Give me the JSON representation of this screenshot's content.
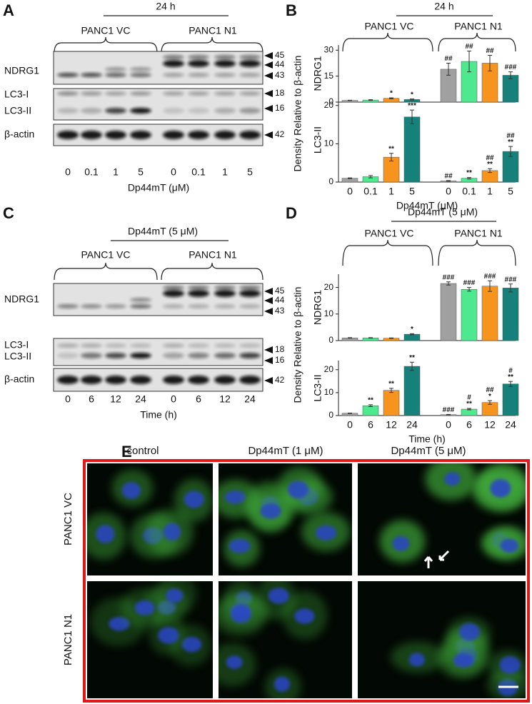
{
  "figure": {
    "panel_labels": [
      "A",
      "B",
      "C",
      "D",
      "E"
    ],
    "blot_a": {
      "title": "24 h",
      "groups": [
        "PANC1 VC",
        "PANC1 N1"
      ],
      "rows": [
        "NDRG1",
        "LC3-I",
        "LC3-II",
        "β-actin"
      ],
      "markers": [
        "45",
        "44",
        "43",
        "18",
        "16",
        "42"
      ],
      "lanes": [
        "0",
        "0.1",
        "1",
        "5",
        "0",
        "0.1",
        "1",
        "5"
      ],
      "xlabel": "Dp44mT (μM)"
    },
    "blot_c": {
      "title": "Dp44mT (5 μM)",
      "groups": [
        "PANC1 VC",
        "PANC1 N1"
      ],
      "rows": [
        "NDRG1",
        "LC3-I",
        "LC3-II",
        "β-actin"
      ],
      "markers": [
        "45",
        "44",
        "43",
        "18",
        "16",
        "42"
      ],
      "lanes": [
        "0",
        "6",
        "12",
        "24",
        "0",
        "6",
        "12",
        "24"
      ],
      "xlabel": "Time (h)"
    },
    "chart_b": {
      "title": "24 h",
      "groups": [
        "PANC1 VC",
        "PANC1 N1"
      ],
      "ylabel": "Density Relative to β-actin",
      "xlabel": "Dp44mT (μM)"
    },
    "chart_d": {
      "title": "Dp44mT (5 μM)",
      "groups": [
        "PANC1 VC",
        "PANC1 N1"
      ],
      "ylabel": "Density Relative to β-actin",
      "xlabel": "Time (h)"
    },
    "microscopy": {
      "columns": [
        "control",
        "Dp44mT (1 μM)",
        "Dp44mT (5 μM)"
      ],
      "rows": [
        "PANC1 VC",
        "PANC1 N1"
      ]
    }
  },
  "chart_data": [
    {
      "type": "bar",
      "ylabel": "NDRG1",
      "ylim": [
        0,
        33
      ],
      "yticks": [
        0,
        15,
        30
      ],
      "values": [
        1,
        1.2,
        2.2,
        1.5,
        19,
        23.5,
        22.5,
        15.5
      ],
      "errors": [
        0.1,
        0.2,
        0.3,
        0.3,
        3.5,
        6,
        4.5,
        2
      ],
      "colors": [
        "#a0a0a0",
        "#4ee88e",
        "#f7941d",
        "#16807a"
      ],
      "annotations": [
        null,
        null,
        "*",
        "*",
        "##",
        "##",
        "##",
        "###"
      ]
    },
    {
      "type": "bar",
      "ylabel": "LC3-II",
      "ylim": [
        0,
        22
      ],
      "yticks": [
        0,
        10,
        20
      ],
      "categories": [
        "0",
        "0.1",
        "1",
        "5",
        "0",
        "0.1",
        "1",
        "5"
      ],
      "values": [
        1,
        1.4,
        6.5,
        17,
        0.3,
        1,
        3,
        8
      ],
      "errors": [
        0.1,
        0.3,
        1,
        1.8,
        0.1,
        0.2,
        0.5,
        1.3
      ],
      "colors": [
        "#a0a0a0",
        "#4ee88e",
        "#f7941d",
        "#16807a"
      ],
      "annotations": [
        null,
        null,
        "**",
        "***",
        "##",
        "**",
        [
          "##",
          "**"
        ],
        [
          "##",
          "**"
        ]
      ]
    },
    {
      "type": "bar",
      "ylabel": "NDRG1",
      "ylim": [
        0,
        25
      ],
      "yticks": [
        0,
        10,
        20
      ],
      "values": [
        1,
        1,
        0.9,
        2.4,
        21.5,
        19.3,
        20.5,
        19.8
      ],
      "errors": [
        0.1,
        0.1,
        0.1,
        0.2,
        0.6,
        0.7,
        2,
        1.5
      ],
      "colors": [
        "#a0a0a0",
        "#4ee88e",
        "#f7941d",
        "#16807a"
      ],
      "annotations": [
        null,
        null,
        null,
        "*",
        "###",
        "###",
        "###",
        "###"
      ]
    },
    {
      "type": "bar",
      "ylabel": "LC3-II",
      "ylim": [
        0,
        24
      ],
      "yticks": [
        0,
        10,
        20
      ],
      "categories": [
        "0",
        "6",
        "12",
        "24",
        "0",
        "6",
        "12",
        "24"
      ],
      "values": [
        1,
        4.3,
        11,
        21.5,
        0.4,
        2.8,
        5.7,
        13.8
      ],
      "errors": [
        0.1,
        0.4,
        0.9,
        1.8,
        0.1,
        0.3,
        0.8,
        1.1
      ],
      "colors": [
        "#a0a0a0",
        "#4ee88e",
        "#f7941d",
        "#16807a"
      ],
      "annotations": [
        null,
        "**",
        "**",
        "**",
        "###",
        [
          "#",
          "**"
        ],
        [
          "##",
          "*"
        ],
        [
          "#",
          "**"
        ]
      ]
    }
  ]
}
